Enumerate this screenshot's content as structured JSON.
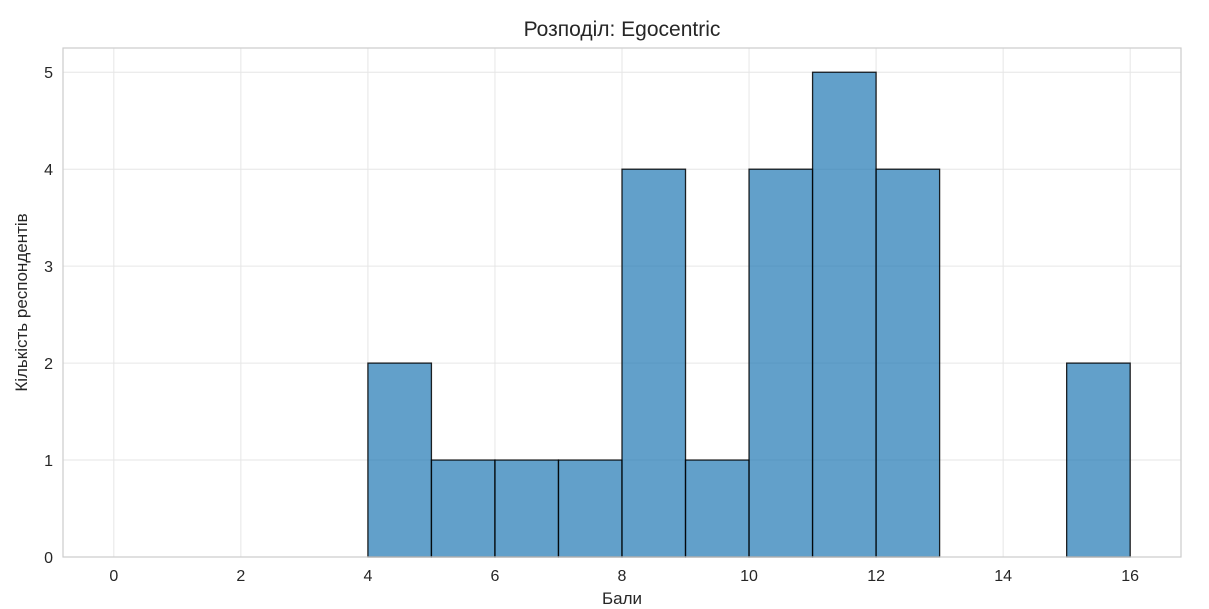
{
  "chart_data": {
    "type": "bar",
    "title": "Розподіл: Egocentric",
    "xlabel": "Бали",
    "ylabel": "Кількість респондентів",
    "xlim": [
      -0.8,
      16.8
    ],
    "ylim": [
      0,
      5.25
    ],
    "xticks": [
      "0",
      "2",
      "4",
      "6",
      "8",
      "10",
      "12",
      "14",
      "16"
    ],
    "yticks": [
      "0",
      "1",
      "2",
      "3",
      "4",
      "5"
    ],
    "grid": true,
    "bins": [
      {
        "x0": 4,
        "x1": 5,
        "value": 2
      },
      {
        "x0": 5,
        "x1": 6,
        "value": 1
      },
      {
        "x0": 6,
        "x1": 7,
        "value": 1
      },
      {
        "x0": 7,
        "x1": 8,
        "value": 1
      },
      {
        "x0": 8,
        "x1": 9,
        "value": 4
      },
      {
        "x0": 9,
        "x1": 10,
        "value": 1
      },
      {
        "x0": 10,
        "x1": 11,
        "value": 4
      },
      {
        "x0": 11,
        "x1": 12,
        "value": 5
      },
      {
        "x0": 12,
        "x1": 13,
        "value": 4
      },
      {
        "x0": 13,
        "x1": 14,
        "value": 0
      },
      {
        "x0": 14,
        "x1": 15,
        "value": 0
      },
      {
        "x0": 15,
        "x1": 16,
        "value": 2
      }
    ],
    "bar_color": "#1f77b4",
    "edge_color": "#000000"
  }
}
